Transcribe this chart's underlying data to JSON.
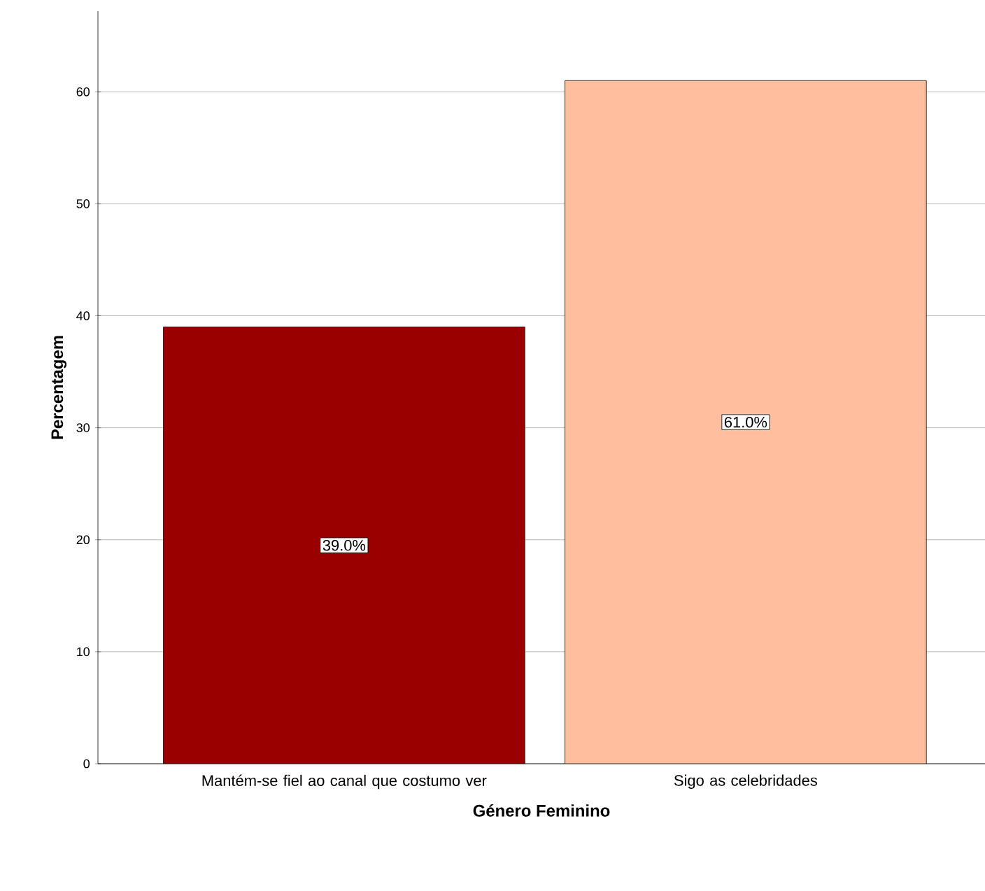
{
  "chart_data": {
    "type": "bar",
    "xlabel": "Género Feminino",
    "ylabel": "Percentagem",
    "categories": [
      "Mantém-se fiel ao canal que costumo ver",
      "Sigo as celebridades"
    ],
    "values": [
      39.0,
      61.0
    ],
    "colors": [
      "#990000",
      "#ffbf9f"
    ],
    "value_labels": [
      "39.0%",
      "61.0%"
    ],
    "ylim": [
      0,
      67.2
    ],
    "yticks": [
      0,
      10,
      20,
      30,
      40,
      50,
      60
    ],
    "grid": "y"
  }
}
